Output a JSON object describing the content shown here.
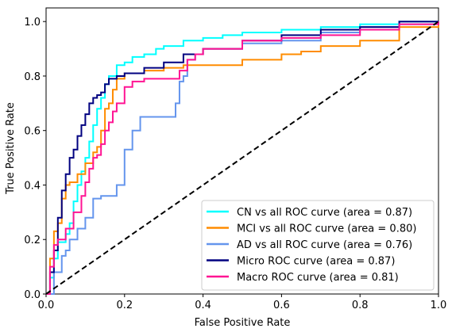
{
  "chart_data": {
    "type": "line",
    "title": "",
    "xlabel": "False Positive Rate",
    "ylabel": "True Positive Rate",
    "xlim": [
      0.0,
      1.0
    ],
    "ylim": [
      0.0,
      1.05
    ],
    "xticks": [
      "0.0",
      "0.2",
      "0.4",
      "0.6",
      "0.8",
      "1.0"
    ],
    "yticks": [
      "0.0",
      "0.2",
      "0.4",
      "0.6",
      "0.8",
      "1.0"
    ],
    "xtick_values": [
      0.0,
      0.2,
      0.4,
      0.6,
      0.8,
      1.0
    ],
    "ytick_values": [
      0.0,
      0.2,
      0.4,
      0.6,
      0.8,
      1.0
    ],
    "grid": false,
    "legend_position": "lower-right",
    "series": [
      {
        "name": "CN vs all ROC curve (area = 0.87)",
        "color": "#00ffff",
        "x": [
          0.0,
          0.01,
          0.02,
          0.03,
          0.03,
          0.05,
          0.06,
          0.07,
          0.08,
          0.09,
          0.1,
          0.11,
          0.12,
          0.13,
          0.14,
          0.15,
          0.16,
          0.18,
          0.2,
          0.22,
          0.25,
          0.28,
          0.3,
          0.35,
          0.4,
          0.45,
          0.5,
          0.6,
          0.7,
          0.8,
          0.9,
          1.0
        ],
        "y": [
          0.0,
          0.06,
          0.13,
          0.17,
          0.19,
          0.22,
          0.26,
          0.34,
          0.4,
          0.45,
          0.5,
          0.56,
          0.62,
          0.68,
          0.72,
          0.77,
          0.8,
          0.84,
          0.85,
          0.87,
          0.88,
          0.9,
          0.91,
          0.93,
          0.94,
          0.95,
          0.96,
          0.97,
          0.98,
          0.99,
          1.0,
          1.0
        ]
      },
      {
        "name": "MCI vs all ROC curve (area = 0.80)",
        "color": "#ff8c00",
        "x": [
          0.0,
          0.01,
          0.02,
          0.03,
          0.04,
          0.05,
          0.06,
          0.08,
          0.1,
          0.12,
          0.13,
          0.14,
          0.15,
          0.16,
          0.17,
          0.18,
          0.2,
          0.25,
          0.3,
          0.35,
          0.4,
          0.5,
          0.6,
          0.65,
          0.7,
          0.8,
          0.9,
          1.0
        ],
        "y": [
          0.0,
          0.13,
          0.23,
          0.26,
          0.35,
          0.4,
          0.41,
          0.44,
          0.48,
          0.52,
          0.54,
          0.6,
          0.68,
          0.7,
          0.75,
          0.79,
          0.81,
          0.82,
          0.83,
          0.84,
          0.84,
          0.86,
          0.88,
          0.89,
          0.91,
          0.93,
          0.98,
          1.0
        ]
      },
      {
        "name": "AD vs all ROC curve (area = 0.76)",
        "color": "#6495ed",
        "x": [
          0.0,
          0.02,
          0.04,
          0.05,
          0.06,
          0.08,
          0.1,
          0.12,
          0.14,
          0.18,
          0.2,
          0.22,
          0.24,
          0.28,
          0.32,
          0.33,
          0.34,
          0.35,
          0.36,
          0.38,
          0.4,
          0.5,
          0.6,
          0.7,
          0.8,
          0.9,
          1.0
        ],
        "y": [
          0.0,
          0.08,
          0.14,
          0.16,
          0.2,
          0.24,
          0.28,
          0.35,
          0.36,
          0.4,
          0.53,
          0.6,
          0.65,
          0.65,
          0.65,
          0.7,
          0.78,
          0.8,
          0.86,
          0.88,
          0.9,
          0.92,
          0.93,
          0.96,
          0.98,
          0.99,
          1.0
        ]
      },
      {
        "name": "Micro ROC curve (area = 0.87)",
        "color": "#000080",
        "x": [
          0.0,
          0.01,
          0.02,
          0.03,
          0.04,
          0.05,
          0.06,
          0.07,
          0.08,
          0.09,
          0.1,
          0.11,
          0.12,
          0.13,
          0.14,
          0.15,
          0.16,
          0.18,
          0.2,
          0.25,
          0.3,
          0.35,
          0.4,
          0.5,
          0.6,
          0.7,
          0.8,
          0.9,
          1.0
        ],
        "y": [
          0.0,
          0.08,
          0.16,
          0.28,
          0.38,
          0.44,
          0.5,
          0.53,
          0.58,
          0.62,
          0.66,
          0.7,
          0.72,
          0.73,
          0.74,
          0.77,
          0.79,
          0.8,
          0.81,
          0.83,
          0.85,
          0.88,
          0.9,
          0.93,
          0.95,
          0.97,
          0.98,
          1.0,
          1.0
        ]
      },
      {
        "name": "Macro ROC curve (area = 0.81)",
        "color": "#ff1493",
        "x": [
          0.0,
          0.01,
          0.02,
          0.03,
          0.05,
          0.07,
          0.09,
          0.1,
          0.11,
          0.12,
          0.13,
          0.14,
          0.15,
          0.16,
          0.17,
          0.18,
          0.2,
          0.22,
          0.25,
          0.3,
          0.34,
          0.36,
          0.38,
          0.4,
          0.5,
          0.6,
          0.7,
          0.8,
          0.9,
          1.0
        ],
        "y": [
          0.0,
          0.1,
          0.18,
          0.2,
          0.24,
          0.3,
          0.36,
          0.41,
          0.46,
          0.5,
          0.51,
          0.55,
          0.6,
          0.63,
          0.67,
          0.7,
          0.76,
          0.78,
          0.79,
          0.79,
          0.82,
          0.86,
          0.88,
          0.9,
          0.93,
          0.94,
          0.95,
          0.97,
          0.99,
          1.0
        ]
      }
    ],
    "reference_line": {
      "x": [
        0.0,
        1.0
      ],
      "y": [
        0.0,
        1.0
      ],
      "color": "#000000",
      "style": "dashed"
    }
  }
}
